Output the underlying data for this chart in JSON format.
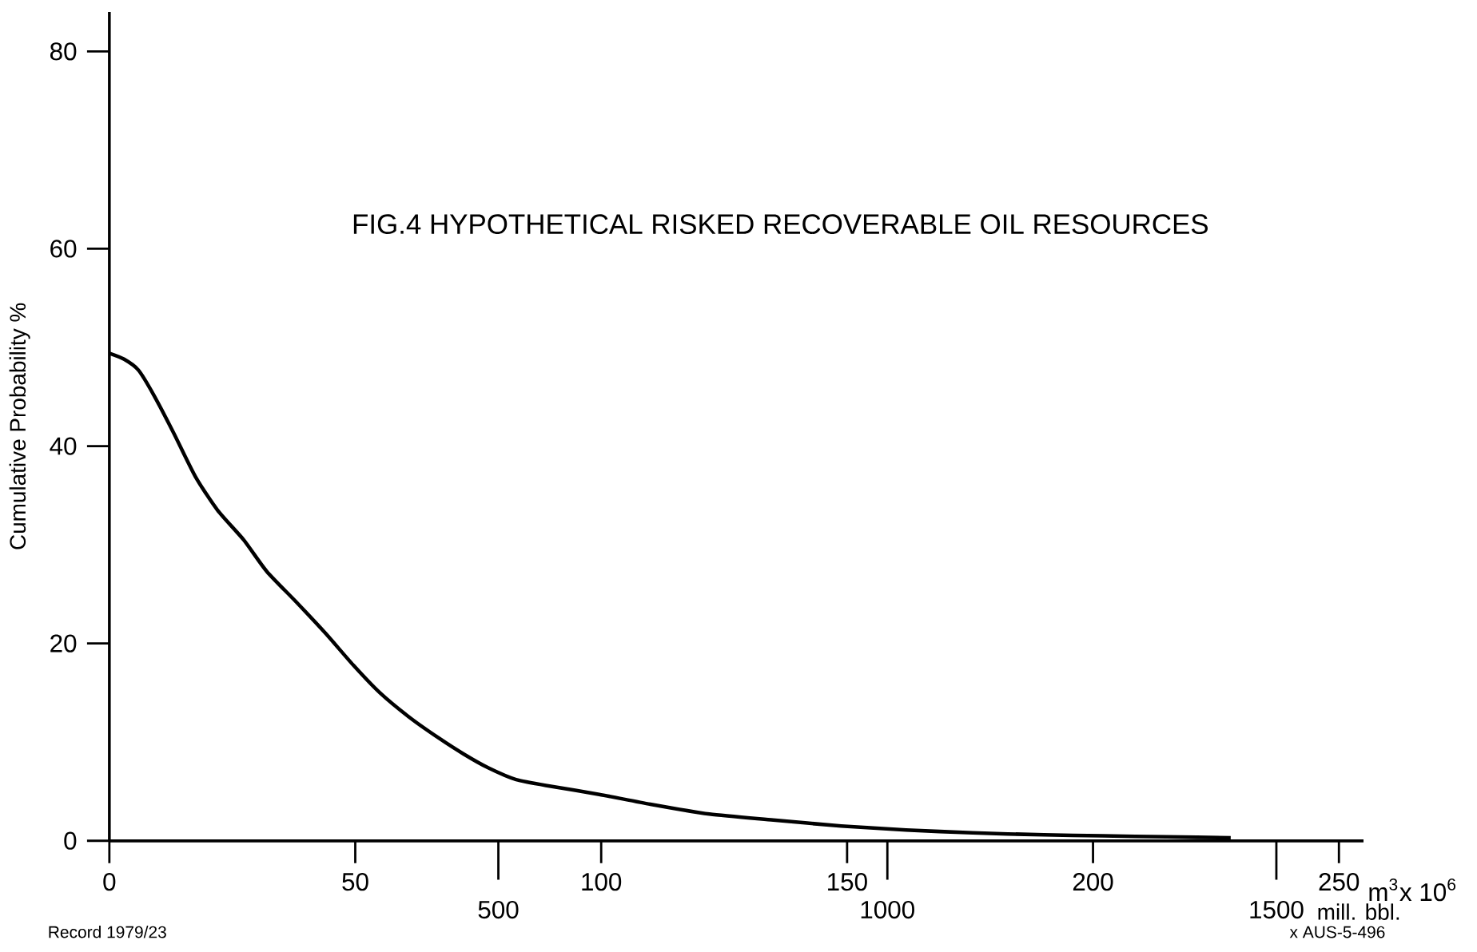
{
  "chart_data": {
    "type": "line",
    "title": "FIG.4 HYPOTHETICAL RISKED RECOVERABLE OIL RESOURCES",
    "ylabel": "Cumulative Probability %",
    "xlabel": "m$^{3}$x 10$^{6}$",
    "x2label": "mill. bbl.",
    "x": [
      0,
      3,
      5.9,
      9,
      13,
      17.5,
      22,
      27.3,
      32,
      38,
      44,
      49.6,
      55,
      61.3,
      67,
      72,
      77,
      82.7,
      90,
      99.6,
      110,
      122,
      135,
      148.8,
      162,
      175.5,
      190,
      202,
      215,
      228
    ],
    "values": [
      49.4,
      48.8,
      47.7,
      45.2,
      41.4,
      36.9,
      33.5,
      30.5,
      27.3,
      24.2,
      21.0,
      17.8,
      15.0,
      12.4,
      10.4,
      8.8,
      7.4,
      6.2,
      5.5,
      4.7,
      3.7,
      2.7,
      2.1,
      1.5,
      1.1,
      0.8,
      0.6,
      0.5,
      0.4,
      0.3
    ],
    "color": "#000000",
    "xlim": [
      0,
      255
    ],
    "xticks": [
      0,
      50,
      100,
      150,
      200,
      250
    ],
    "x2lim": [
      0,
      1612
    ],
    "x2ticks": [
      500,
      1000,
      1500
    ],
    "ylim": [
      0,
      84
    ],
    "yticks": [
      0,
      20,
      40,
      60,
      80
    ],
    "grid": false,
    "annotations": [
      "Record 1979/23",
      "x AUS-5-496"
    ]
  }
}
